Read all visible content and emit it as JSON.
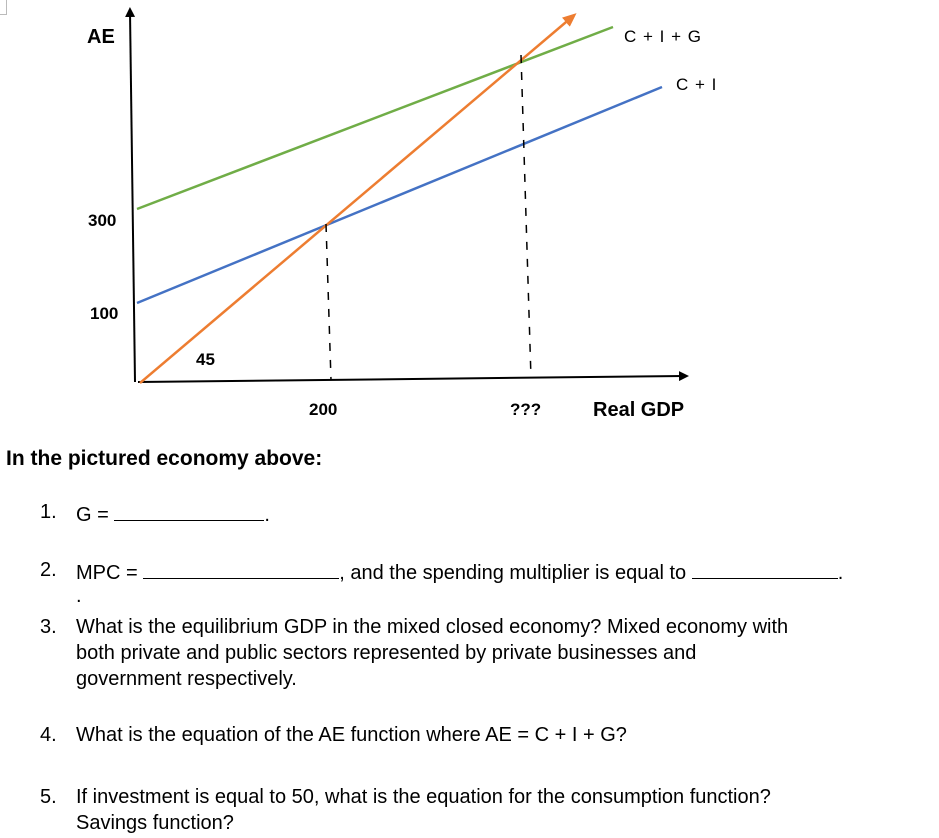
{
  "diagram": {
    "y_axis_label": "AE",
    "x_axis_label": "Real GDP",
    "y_ticks": [
      "300",
      "100"
    ],
    "x_ticks": [
      "200",
      "???"
    ],
    "angle_label": "45",
    "lines": [
      {
        "name": "C + I + G",
        "color": "#70ad47",
        "intercept": 300
      },
      {
        "name": "C + I",
        "color": "#4472c4",
        "intercept": 100
      },
      {
        "name": "45-degree line",
        "color": "#ed7d31"
      }
    ],
    "axis_color": "#000000"
  },
  "worksheet": {
    "heading": "In the pictured economy above:",
    "q1_number": "1.",
    "q1_text": "G =",
    "q1_end": ".",
    "q2_number": "2.",
    "q2_text_a": "MPC =",
    "q2_text_b": ", and the spending multiplier is equal to",
    "q2_end": ".",
    "q2_stray": ".",
    "q3_number": "3.",
    "q3_line1": "What is the equilibrium GDP in the mixed closed economy? Mixed economy with",
    "q3_line2": "both private and public sectors represented by private businesses and",
    "q3_line3": "government respectively.",
    "q4_number": "4.",
    "q4_text": "What is the equation of the AE function where AE = C + I + G?",
    "q5_number": "5.",
    "q5_line1": "If investment is equal to 50, what is the equation for the consumption function?",
    "q5_line2": "Savings function?"
  }
}
